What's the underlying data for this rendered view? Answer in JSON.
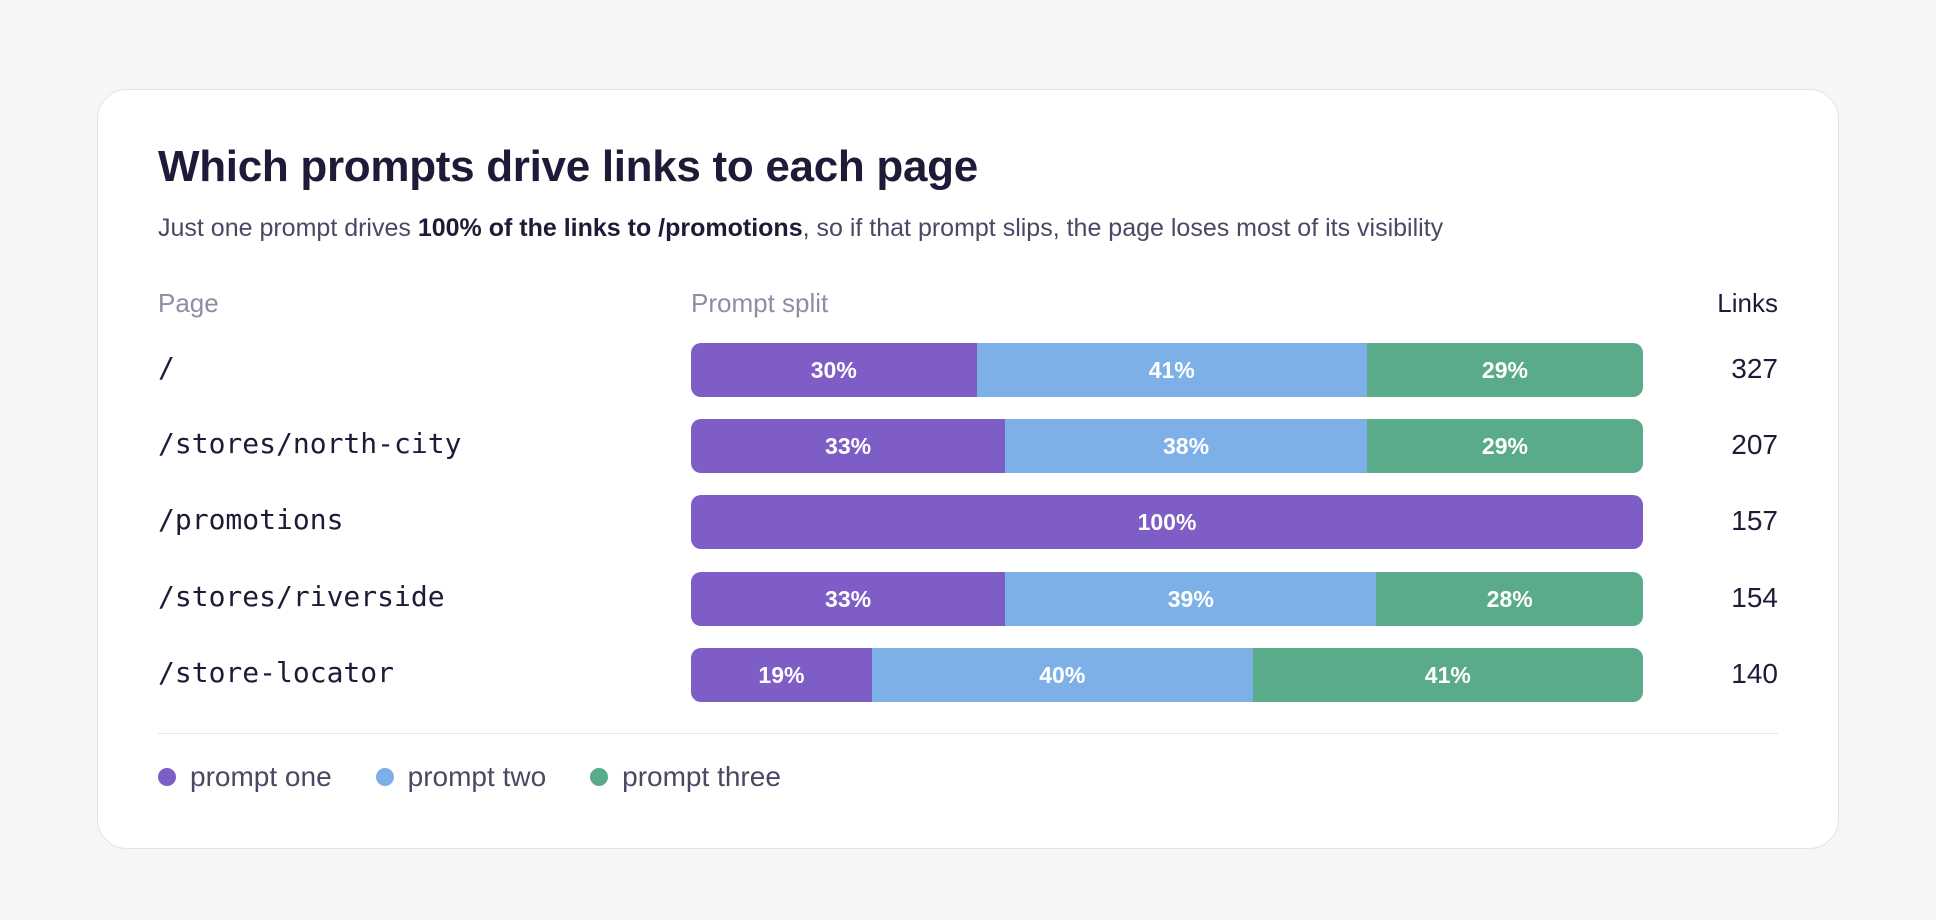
{
  "header": {
    "title": "Which prompts drive links to each page",
    "subtitle_pre": "Just one prompt drives ",
    "subtitle_bold": "100% of the links to /promotions",
    "subtitle_post": ", so if that prompt slips, the page loses most of its visibility"
  },
  "columns": {
    "page": "Page",
    "split": "Prompt split",
    "links": "Links"
  },
  "colors": {
    "prompt_one": "#7f5dc7",
    "prompt_two": "#7eb0e8",
    "prompt_three": "#5aab89"
  },
  "chart_data": {
    "type": "bar",
    "stacked": "100%",
    "orientation": "horizontal",
    "title": "Which prompts drive links to each page",
    "categories": [
      "/",
      "/stores/north-city",
      "/promotions",
      "/stores/riverside",
      "/store-locator"
    ],
    "series": [
      {
        "name": "prompt one",
        "values": [
          30,
          33,
          100,
          33,
          19
        ]
      },
      {
        "name": "prompt two",
        "values": [
          41,
          38,
          0,
          39,
          40
        ]
      },
      {
        "name": "prompt three",
        "values": [
          29,
          29,
          0,
          28,
          41
        ]
      }
    ],
    "links": [
      327,
      207,
      157,
      154,
      140
    ],
    "legend_position": "bottom-left"
  }
}
